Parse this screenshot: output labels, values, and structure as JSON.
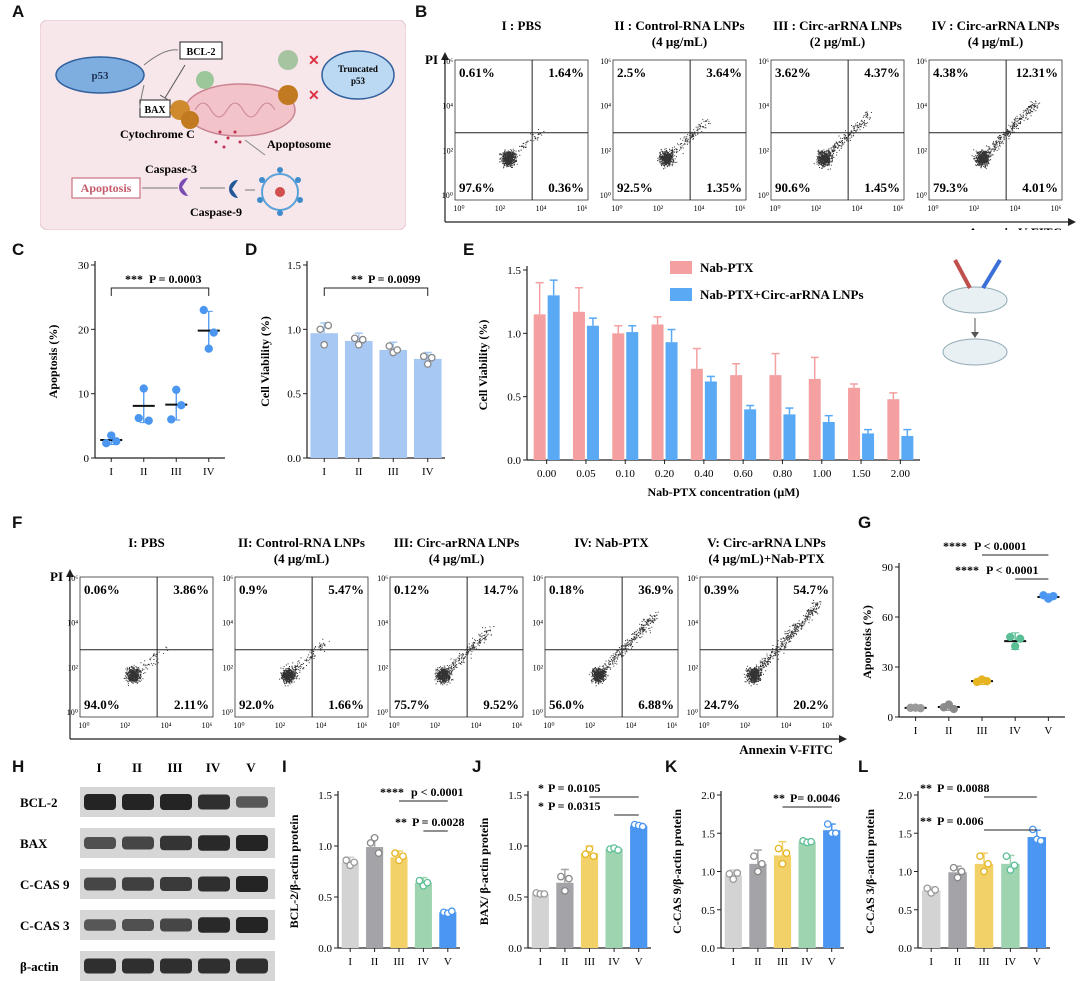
{
  "letters": {
    "A": "A",
    "B": "B",
    "C": "C",
    "D": "D",
    "E": "E",
    "F": "F",
    "G": "G",
    "H": "H",
    "I": "I",
    "J": "J",
    "K": "K",
    "L": "L"
  },
  "panelA": {
    "p53": "p53",
    "bcl2": "BCL-2",
    "bax": "BAX",
    "truncated1": "Truncated",
    "truncated2": "p53",
    "cytc": "Cytochrome C",
    "apoptosome": "Apoptosome",
    "cas3": "Caspase-3",
    "cas9": "Caspase-9",
    "apoptosis": "Apoptosis"
  },
  "panelB": {
    "yaxis": "PI",
    "xaxis": "Annexin V-FITC",
    "plots": [
      {
        "title1": "I : PBS",
        "title2": "",
        "q": [
          "0.61%",
          "1.64%",
          "97.6%",
          "0.36%"
        ],
        "spread": 0
      },
      {
        "title1": "II : Control-RNA LNPs",
        "title2": "(4 μg/mL)",
        "q": [
          "2.5%",
          "3.64%",
          "92.5%",
          "1.35%"
        ],
        "spread": 0.2
      },
      {
        "title1": "III : Circ-arRNA LNPs",
        "title2": "(2 μg/mL)",
        "q": [
          "3.62%",
          "4.37%",
          "90.6%",
          "1.45%"
        ],
        "spread": 0.35
      },
      {
        "title1": "IV : Circ-arRNA LNPs",
        "title2": "(4 μg/mL)",
        "q": [
          "4.38%",
          "12.31%",
          "79.3%",
          "4.01%"
        ],
        "spread": 0.6
      }
    ],
    "xticks": [
      "10⁰",
      "10²",
      "10⁴",
      "10⁶"
    ],
    "yticks": [
      "10⁶",
      "10⁴",
      "10²",
      "10⁰"
    ]
  },
  "panelF": {
    "yaxis": "PI",
    "xaxis": "Annexin V-FITC",
    "plots": [
      {
        "title1": "I: PBS",
        "title2": "",
        "q": [
          "0.06%",
          "3.86%",
          "94.0%",
          "2.11%"
        ],
        "spread": 0
      },
      {
        "title1": "II: Control-RNA LNPs",
        "title2": "(4 μg/mL)",
        "q": [
          "0.9%",
          "5.47%",
          "92.0%",
          "1.66%"
        ],
        "spread": 0.15
      },
      {
        "title1": "III: Circ-arRNA LNPs",
        "title2": "(4 μg/mL)",
        "q": [
          "0.12%",
          "14.7%",
          "75.7%",
          "9.52%"
        ],
        "spread": 0.4
      },
      {
        "title1": "IV: Nab-PTX",
        "title2": "",
        "q": [
          "0.18%",
          "36.9%",
          "56.0%",
          "6.88%"
        ],
        "spread": 0.7
      },
      {
        "title1": "V: Circ-arRNA LNPs",
        "title2": "(4 μg/mL)+Nab-PTX",
        "q": [
          "0.39%",
          "54.7%",
          "24.7%",
          "20.2%"
        ],
        "spread": 0.95
      }
    ],
    "xticks": [
      "10⁰",
      "10²",
      "10⁴",
      "10⁶"
    ],
    "yticks": [
      "10⁶",
      "10⁴",
      "10²",
      "10⁰"
    ]
  },
  "panelH": {
    "lanes": [
      "I",
      "II",
      "III",
      "IV",
      "V"
    ],
    "rows": [
      {
        "label": "BCL-2",
        "int": [
          1,
          1,
          1,
          0.9,
          0.55
        ]
      },
      {
        "label": "BAX",
        "int": [
          0.6,
          0.7,
          0.85,
          0.95,
          1
        ]
      },
      {
        "label": "C-CAS 9",
        "int": [
          0.7,
          0.75,
          0.8,
          0.9,
          1
        ]
      },
      {
        "label": "C-CAS 3",
        "int": [
          0.55,
          0.6,
          0.7,
          0.95,
          1
        ]
      },
      {
        "label": "β-actin",
        "int": [
          0.9,
          0.9,
          0.9,
          0.9,
          0.9
        ]
      }
    ]
  },
  "chart_data": [
    {
      "id": "C",
      "type": "scatter",
      "ylabel": "Apoptosis (%)",
      "categories": [
        "I",
        "II",
        "III",
        "IV"
      ],
      "ylim": [
        0,
        30
      ],
      "yticks": [
        0,
        10,
        20,
        30
      ],
      "means": [
        2.8,
        8.1,
        8.3,
        19.8
      ],
      "sd": [
        0.7,
        2.6,
        2.4,
        3.0
      ],
      "points": [
        [
          2.3,
          3.5,
          2.6
        ],
        [
          6.2,
          10.8,
          5.8
        ],
        [
          6.0,
          10.6,
          8.2
        ],
        [
          23.0,
          17.0,
          19.5
        ]
      ],
      "annotations": [
        {
          "stars": "***",
          "p": "P = 0.0003",
          "from": 0,
          "to": 3
        }
      ]
    },
    {
      "id": "D",
      "type": "bar",
      "ylabel": "Cell Viability (%)",
      "categories": [
        "I",
        "II",
        "III",
        "IV"
      ],
      "ylim": [
        0,
        1.5
      ],
      "yticks": [
        "0.0",
        "0.5",
        "1.0",
        "1.5"
      ],
      "values": [
        0.97,
        0.91,
        0.84,
        0.77
      ],
      "err": [
        0.08,
        0.06,
        0.06,
        0.05
      ],
      "points": [
        [
          1.0,
          0.88,
          1.03
        ],
        [
          0.93,
          0.88,
          0.92
        ],
        [
          0.87,
          0.82,
          0.84
        ],
        [
          0.79,
          0.73,
          0.78
        ]
      ],
      "annotations": [
        {
          "stars": "**",
          "p": "P = 0.0099",
          "from": 0,
          "to": 3
        }
      ]
    },
    {
      "id": "E",
      "type": "bar",
      "ylabel": "Cell Viability (%)",
      "xlabel": "Nab-PTX concentration (μM)",
      "categories": [
        "0.00",
        "0.05",
        "0.10",
        "0.20",
        "0.40",
        "0.60",
        "0.80",
        "1.00",
        "1.50",
        "2.00"
      ],
      "ylim": [
        0,
        1.5
      ],
      "yticks": [
        "0.0",
        "0.5",
        "1.0",
        "1.5"
      ],
      "series": [
        {
          "name": "Nab-PTX",
          "color": "#f4a0a0",
          "values": [
            1.15,
            1.17,
            1.0,
            1.07,
            0.72,
            0.67,
            0.67,
            0.64,
            0.57,
            0.48
          ],
          "err": [
            0.25,
            0.19,
            0.06,
            0.06,
            0.16,
            0.09,
            0.17,
            0.17,
            0.03,
            0.05
          ]
        },
        {
          "name": "Nab-PTX+Circ-arRNA LNPs",
          "color": "#5aa9f5",
          "values": [
            1.3,
            1.06,
            1.01,
            0.93,
            0.62,
            0.4,
            0.36,
            0.3,
            0.21,
            0.19
          ],
          "err": [
            0.12,
            0.06,
            0.05,
            0.1,
            0.04,
            0.03,
            0.05,
            0.05,
            0.03,
            0.05
          ]
        }
      ]
    },
    {
      "id": "G",
      "type": "scatter",
      "ylabel": "Apoptosis (%)",
      "categories": [
        "I",
        "II",
        "III",
        "IV",
        "V"
      ],
      "ylim": [
        0,
        90
      ],
      "yticks": [
        0,
        30,
        60,
        90
      ],
      "means": [
        5.5,
        6.0,
        21.5,
        45.5,
        72.0
      ],
      "sd": [
        1.0,
        2.0,
        2.0,
        5.0,
        2.0
      ],
      "colors": [
        "#9a9a9a",
        "#8a8a8a",
        "#e6b420",
        "#5bbf96",
        "#4a96f0"
      ],
      "points": [
        [
          5.5,
          5.6,
          5.3
        ],
        [
          5.8,
          7.5,
          4.8
        ],
        [
          21.0,
          22.5,
          21.5
        ],
        [
          48.0,
          42.5,
          47.0
        ],
        [
          73.0,
          71.0,
          72.5
        ]
      ],
      "annotations": [
        {
          "stars": "****",
          "p": "P < 0.0001",
          "from": 2,
          "to": 4
        },
        {
          "stars": "****",
          "p": "P < 0.0001",
          "from": 3,
          "to": 4
        }
      ]
    },
    {
      "id": "I",
      "type": "bar",
      "ylabel": "BCL-2/β-actin protein",
      "categories": [
        "I",
        "II",
        "III",
        "IV",
        "V"
      ],
      "ylim": [
        0,
        1.5
      ],
      "yticks": [
        "0.0",
        "0.5",
        "1.0",
        "1.5"
      ],
      "values": [
        0.84,
        0.99,
        0.89,
        0.64,
        0.35
      ],
      "err": [
        0.05,
        0.1,
        0.06,
        0.05,
        0.02
      ],
      "points": [
        [
          0.86,
          0.81,
          0.84
        ],
        [
          1.03,
          1.08,
          0.93
        ],
        [
          0.93,
          0.86,
          0.9
        ],
        [
          0.66,
          0.61,
          0.64
        ],
        [
          0.35,
          0.34,
          0.36
        ]
      ],
      "annotations": [
        {
          "stars": "****",
          "p": "p < 0.0001",
          "from": 2,
          "to": 4
        },
        {
          "stars": "**",
          "p": "P = 0.0028",
          "from": 3,
          "to": 4
        }
      ]
    },
    {
      "id": "J",
      "type": "bar",
      "ylabel": "BAX/ β-actin protein",
      "categories": [
        "I",
        "II",
        "III",
        "IV",
        "V"
      ],
      "ylim": [
        0,
        1.5
      ],
      "yticks": [
        "0.0",
        "0.5",
        "1.0",
        "1.5"
      ],
      "values": [
        0.53,
        0.64,
        0.93,
        0.97,
        1.2
      ],
      "err": [
        0.02,
        0.13,
        0.07,
        0.02,
        0.02
      ],
      "points": [
        [
          0.54,
          0.53,
          0.53
        ],
        [
          0.7,
          0.56,
          0.68
        ],
        [
          0.92,
          0.97,
          0.9
        ],
        [
          0.97,
          0.98,
          0.96
        ],
        [
          1.21,
          1.2,
          1.19
        ]
      ],
      "annotations": [
        {
          "stars": "*",
          "p": "P = 0.0105",
          "from": 2,
          "to": 4
        },
        {
          "stars": "*",
          "p": "P = 0.0315",
          "from": 3,
          "to": 4
        }
      ]
    },
    {
      "id": "K",
      "type": "bar",
      "ylabel": "C-CAS 9/β-actin protein",
      "categories": [
        "I",
        "II",
        "III",
        "IV",
        "V"
      ],
      "ylim": [
        0,
        2.0
      ],
      "yticks": [
        "0.0",
        "0.5",
        "1.0",
        "1.5",
        "2.0"
      ],
      "values": [
        0.95,
        1.1,
        1.21,
        1.39,
        1.54
      ],
      "err": [
        0.07,
        0.18,
        0.18,
        0.03,
        0.08
      ],
      "points": [
        [
          0.97,
          0.9,
          0.98
        ],
        [
          1.2,
          1.0,
          1.1
        ],
        [
          1.3,
          1.1,
          1.24
        ],
        [
          1.4,
          1.38,
          1.39
        ],
        [
          1.62,
          1.5,
          1.5
        ]
      ],
      "annotations": [
        {
          "stars": "**",
          "p": "P= 0.0046",
          "from": 2,
          "to": 4
        }
      ]
    },
    {
      "id": "L",
      "type": "bar",
      "ylabel": "C-CAS 3/β-actin protein",
      "categories": [
        "I",
        "II",
        "III",
        "IV",
        "V"
      ],
      "ylim": [
        0,
        2.0
      ],
      "yticks": [
        "0.0",
        "0.5",
        "1.0",
        "1.5",
        "2.0"
      ],
      "values": [
        0.75,
        0.99,
        1.1,
        1.1,
        1.45
      ],
      "err": [
        0.05,
        0.08,
        0.14,
        0.11,
        0.09
      ],
      "points": [
        [
          0.78,
          0.72,
          0.76
        ],
        [
          1.05,
          0.92,
          1.0
        ],
        [
          1.2,
          1.0,
          1.1
        ],
        [
          1.2,
          1.02,
          1.08
        ],
        [
          1.55,
          1.42,
          1.4
        ]
      ],
      "annotations": [
        {
          "stars": "**",
          "p": "P = 0.0088",
          "from": 2,
          "to": 4
        },
        {
          "stars": "**",
          "p": "P = 0.006",
          "from": 2,
          "to": 4
        }
      ]
    }
  ]
}
